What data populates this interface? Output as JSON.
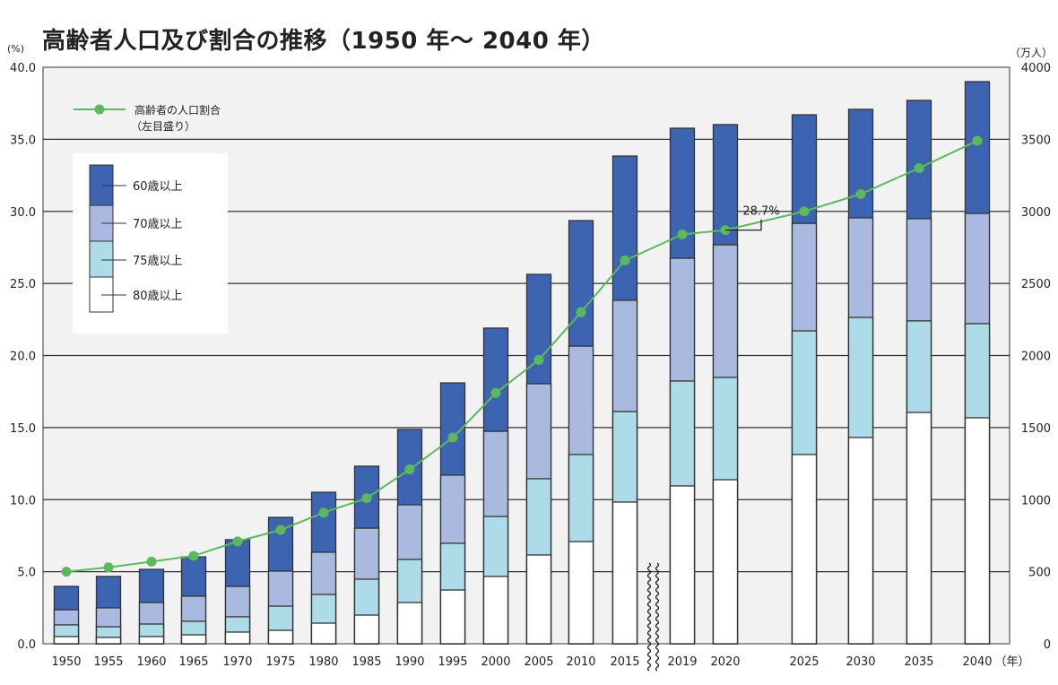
{
  "chart_data": {
    "type": "bar",
    "title": "高齢者人口及び割合の推移（1950 年～ 2040 年）",
    "ylabel_left": "(%)",
    "ylabel_right": "（万人）",
    "xlabel": "（年）",
    "ylim_left": [
      0,
      40
    ],
    "ylim_right": [
      0,
      4000
    ],
    "yticks_left": [
      "0.0",
      "5.0",
      "10.0",
      "15.0",
      "20.0",
      "25.0",
      "30.0",
      "35.0",
      "40.0"
    ],
    "yticks_right": [
      "0",
      "500",
      "1000",
      "1500",
      "2000",
      "2500",
      "3000",
      "3500",
      "4000"
    ],
    "grid": true,
    "categories": [
      "1950",
      "1955",
      "1960",
      "1965",
      "1970",
      "1975",
      "1980",
      "1985",
      "1990",
      "1995",
      "2000",
      "2005",
      "2010",
      "2015",
      "2019",
      "2020",
      "2025",
      "2030",
      "2035",
      "2040"
    ],
    "series": [
      {
        "name": "60歳以上",
        "color": "#3c64b1",
        "values": [
          398,
          467,
          516,
          603,
          722,
          877,
          1051,
          1232,
          1487,
          1810,
          2190,
          2563,
          2936,
          3384,
          3577,
          3602,
          3670,
          3708,
          3770,
          3900
        ]
      },
      {
        "name": "70歳以上",
        "color": "#a9b9e0",
        "values": [
          236,
          249,
          286,
          330,
          398,
          504,
          635,
          802,
          964,
          1170,
          1474,
          1804,
          2065,
          2383,
          2675,
          2768,
          2917,
          2955,
          2949,
          2986
        ]
      },
      {
        "name": "75歳以上",
        "color": "#addbe8",
        "values": [
          131,
          118,
          137,
          156,
          187,
          261,
          342,
          448,
          585,
          697,
          883,
          1145,
          1313,
          1611,
          1823,
          1848,
          2171,
          2264,
          2240,
          2221
        ]
      },
      {
        "name": "80歳以上",
        "color": "#ffffff",
        "values": [
          50,
          44,
          50,
          62,
          81,
          93,
          143,
          199,
          286,
          373,
          467,
          616,
          709,
          983,
          1095,
          1138,
          1313,
          1431,
          1605,
          1568
        ]
      }
    ],
    "line_series": {
      "name": "高齢者の人口割合",
      "name_sub": "（左目盛り）",
      "color": "#5cb85c",
      "axis": "left",
      "values": [
        5.0,
        5.3,
        5.7,
        6.1,
        7.1,
        7.9,
        9.1,
        10.1,
        12.1,
        14.3,
        17.4,
        19.7,
        23.0,
        26.6,
        28.4,
        28.7,
        30.0,
        31.2,
        33.0,
        34.9
      ]
    },
    "annotations": [
      {
        "category": "2020",
        "text": "28.7%"
      }
    ],
    "axis_break_after": "2015",
    "legend": {
      "position": "top-left"
    }
  }
}
